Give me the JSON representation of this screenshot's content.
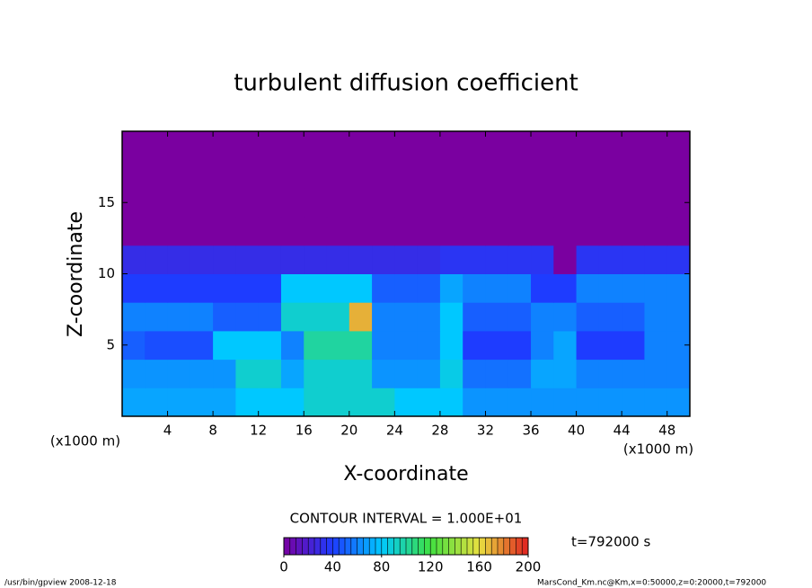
{
  "chart_data": {
    "type": "heatmap",
    "title": "turbulent diffusion coefficient",
    "x_label": "X-coordinate",
    "y_label": "Z-coordinate",
    "x_unit_labels": [
      "(x1000 m)",
      "(x1000 m)"
    ],
    "xlim": [
      0,
      50
    ],
    "ylim": [
      0,
      20
    ],
    "xticks": [
      4,
      8,
      12,
      16,
      20,
      24,
      28,
      32,
      36,
      40,
      44,
      48
    ],
    "yticks": [
      5,
      10,
      15
    ],
    "x": [
      1,
      3,
      5,
      7,
      9,
      11,
      13,
      15,
      17,
      19,
      21,
      23,
      25,
      27,
      29,
      31,
      33,
      35,
      37,
      39,
      41,
      43,
      45,
      47,
      49
    ],
    "y": [
      1,
      3,
      5,
      7,
      9,
      11,
      13,
      15,
      17,
      19
    ],
    "values": [
      [
        70,
        70,
        70,
        70,
        70,
        80,
        80,
        80,
        90,
        90,
        90,
        90,
        80,
        80,
        80,
        65,
        65,
        65,
        65,
        65,
        65,
        65,
        65,
        65,
        65
      ],
      [
        65,
        65,
        65,
        65,
        65,
        90,
        90,
        70,
        90,
        90,
        90,
        65,
        65,
        65,
        85,
        55,
        55,
        55,
        70,
        70,
        60,
        60,
        60,
        60,
        60
      ],
      [
        50,
        45,
        45,
        45,
        80,
        80,
        80,
        60,
        100,
        100,
        100,
        60,
        60,
        60,
        80,
        40,
        40,
        40,
        60,
        70,
        40,
        40,
        40,
        60,
        60
      ],
      [
        60,
        60,
        60,
        60,
        50,
        50,
        50,
        90,
        90,
        90,
        170,
        60,
        60,
        60,
        80,
        50,
        50,
        50,
        60,
        60,
        50,
        50,
        50,
        60,
        60
      ],
      [
        40,
        40,
        40,
        40,
        40,
        40,
        40,
        80,
        80,
        80,
        80,
        50,
        50,
        50,
        70,
        60,
        60,
        60,
        40,
        40,
        60,
        60,
        60,
        60,
        60
      ],
      [
        30,
        30,
        30,
        30,
        30,
        30,
        30,
        30,
        30,
        30,
        30,
        30,
        30,
        30,
        35,
        35,
        35,
        35,
        35,
        0,
        35,
        35,
        35,
        35,
        35
      ],
      [
        0,
        0,
        0,
        0,
        0,
        0,
        0,
        0,
        0,
        0,
        0,
        0,
        0,
        0,
        0,
        0,
        0,
        0,
        0,
        0,
        0,
        0,
        0,
        0,
        0
      ],
      [
        0,
        0,
        0,
        0,
        0,
        0,
        0,
        0,
        0,
        0,
        0,
        0,
        0,
        0,
        0,
        0,
        0,
        0,
        0,
        0,
        0,
        0,
        0,
        0,
        0
      ],
      [
        0,
        0,
        0,
        0,
        0,
        0,
        0,
        0,
        0,
        0,
        0,
        0,
        0,
        0,
        0,
        0,
        0,
        0,
        0,
        0,
        0,
        0,
        0,
        0,
        0
      ],
      [
        0,
        0,
        0,
        0,
        0,
        0,
        0,
        0,
        0,
        0,
        0,
        0,
        0,
        0,
        0,
        0,
        0,
        0,
        0,
        0,
        0,
        0,
        0,
        0,
        0
      ]
    ],
    "colors": [
      "#7a00a0",
      "#1e3cff",
      "#00c8ff",
      "#40e040",
      "#e8e040",
      "#e02020"
    ],
    "contour_interval": "CONTOUR INTERVAL = 1.000E+01",
    "colorbar_lim": [
      0,
      200
    ],
    "colorbar_ticks": [
      0,
      40,
      80,
      120,
      160,
      200
    ],
    "time_label": "t=792000 s",
    "footer_left": "/usr/bin/gpview  2008-12-18",
    "footer_right": "MarsCond_Km.nc@Km,x=0:50000,z=0:20000,t=792000"
  }
}
